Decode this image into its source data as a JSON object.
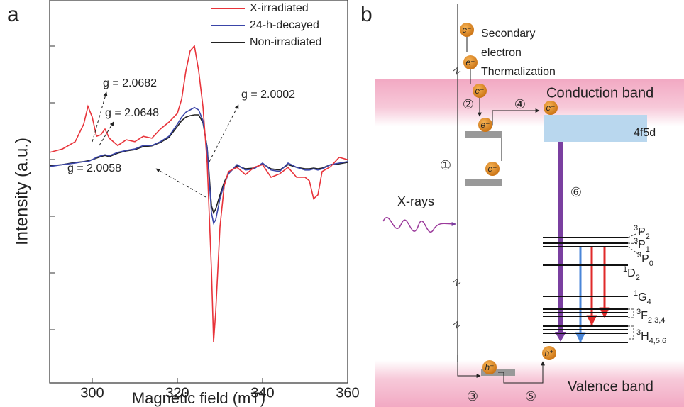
{
  "panel_labels": [
    "a",
    "b"
  ],
  "chart_data": {
    "type": "line",
    "x_label": "Magnetic  field (mT)",
    "y_label": "Intensity (a.u.)",
    "x": [
      290,
      293,
      296,
      298,
      299,
      300,
      301,
      302,
      303,
      304,
      306,
      308,
      310,
      312,
      314,
      316,
      318,
      320,
      321,
      322,
      323,
      324,
      325,
      326,
      327,
      328,
      328.5,
      329,
      330,
      331,
      332,
      334,
      336,
      338,
      340,
      342,
      344,
      346,
      348,
      350,
      351,
      352,
      353,
      354,
      356,
      358,
      360
    ],
    "series": [
      {
        "name": "X-irradiated",
        "color": "#e8333a",
        "values": [
          1.02,
          1.11,
          1.3,
          1.76,
          2.22,
          1.94,
          1.44,
          1.48,
          1.63,
          1.39,
          1.2,
          1.35,
          1.3,
          1.44,
          1.39,
          1.63,
          1.81,
          2.04,
          2.41,
          3.15,
          3.67,
          3.8,
          3.15,
          2.22,
          0.74,
          -2.04,
          -3.93,
          -3.15,
          -0.93,
          0.15,
          0.52,
          0.63,
          0.44,
          0.63,
          0.7,
          0.37,
          0.46,
          0.63,
          0.37,
          0.37,
          0.28,
          -0.19,
          -0.09,
          0.52,
          0.65,
          0.89,
          0.83
        ]
      },
      {
        "name": "24-h-decayed",
        "color": "#3a45a8",
        "values": [
          0.65,
          0.7,
          0.74,
          0.78,
          0.78,
          0.83,
          0.89,
          0.93,
          0.96,
          0.93,
          1.02,
          1.07,
          1.11,
          1.2,
          1.2,
          1.3,
          1.44,
          1.76,
          1.94,
          2.07,
          2.13,
          2.19,
          2.13,
          1.85,
          1.11,
          -0.56,
          -0.83,
          -0.74,
          -0.19,
          0.19,
          0.46,
          0.7,
          0.56,
          0.59,
          0.74,
          0.56,
          0.52,
          0.74,
          0.63,
          0.56,
          0.56,
          0.59,
          0.56,
          0.59,
          0.7,
          0.74,
          0.78
        ]
      },
      {
        "name": "Non-irradiated",
        "color": "#222222",
        "values": [
          0.67,
          0.7,
          0.76,
          0.78,
          0.8,
          0.83,
          0.87,
          0.91,
          0.94,
          0.91,
          1.0,
          1.06,
          1.09,
          1.17,
          1.19,
          1.28,
          1.41,
          1.7,
          1.85,
          1.94,
          1.98,
          2.0,
          2.0,
          1.8,
          1.15,
          -0.37,
          -0.56,
          -0.46,
          -0.09,
          0.24,
          0.48,
          0.67,
          0.59,
          0.61,
          0.72,
          0.59,
          0.56,
          0.7,
          0.63,
          0.59,
          0.59,
          0.61,
          0.59,
          0.61,
          0.7,
          0.72,
          0.76
        ]
      }
    ],
    "xlim": [
      290,
      360
    ],
    "xticks": [
      300,
      320,
      340,
      360
    ],
    "ylim": [
      -5,
      5
    ],
    "annotations": [
      "g = 2.0682",
      "g = 2.0648",
      "g = 2.0002",
      "g = 2.0058"
    ]
  },
  "diagram": {
    "texts": [
      "Secondary",
      "electron",
      "Thermalization",
      "Conduction band",
      "4f5d",
      "X-rays",
      "Valence band"
    ],
    "electron": "e⁻",
    "hole": "h⁺",
    "steps": [
      "①",
      "②",
      "③",
      "④",
      "⑤",
      "⑥"
    ],
    "levels": [
      {
        "sup": "3",
        "base": "P",
        "sub": "2"
      },
      {
        "sup": "3",
        "base": "P",
        "sub": "1"
      },
      {
        "sup": "3",
        "base": "P",
        "sub": "0"
      },
      {
        "sup": "1",
        "base": "D",
        "sub": "2"
      },
      {
        "sup": "1",
        "base": "G",
        "sub": "4"
      },
      {
        "sup": "3",
        "base": "F",
        "sub": "2,3,4"
      },
      {
        "sup": "3",
        "base": "H",
        "sub": "4,5,6"
      }
    ]
  }
}
